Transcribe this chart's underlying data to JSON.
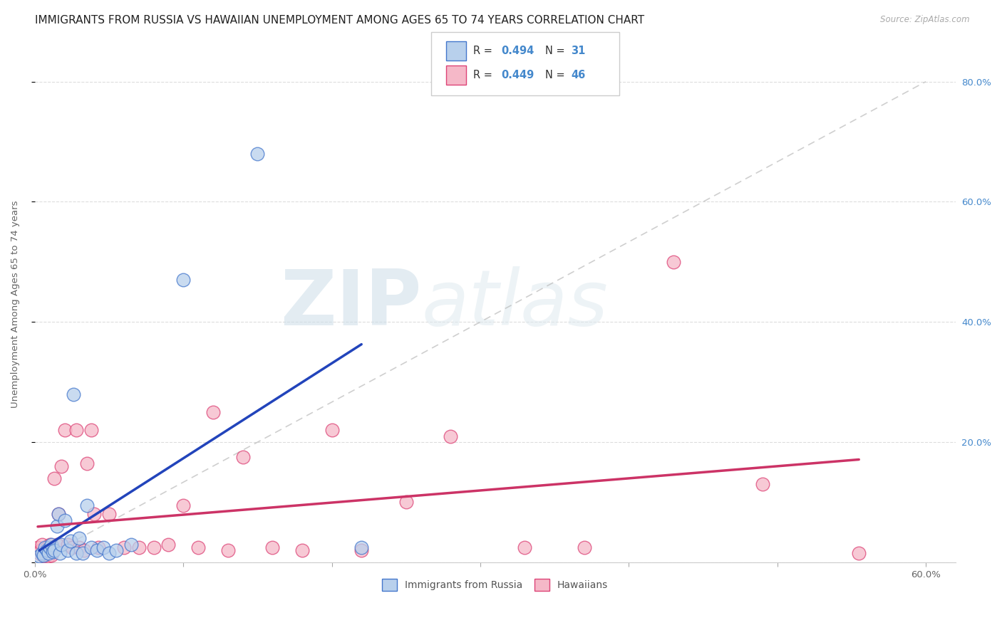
{
  "title": "IMMIGRANTS FROM RUSSIA VS HAWAIIAN UNEMPLOYMENT AMONG AGES 65 TO 74 YEARS CORRELATION CHART",
  "source": "Source: ZipAtlas.com",
  "ylabel": "Unemployment Among Ages 65 to 74 years",
  "xlim": [
    0.0,
    0.62
  ],
  "ylim": [
    0.0,
    0.86
  ],
  "xtick_positions": [
    0.0,
    0.1,
    0.2,
    0.3,
    0.4,
    0.5,
    0.6
  ],
  "ytick_positions": [
    0.0,
    0.2,
    0.4,
    0.6,
    0.8
  ],
  "watermark_zip": "ZIP",
  "watermark_atlas": "atlas",
  "series1_fill": "#b8d0ec",
  "series1_edge": "#4477cc",
  "series2_fill": "#f5b8c8",
  "series2_edge": "#dd4477",
  "line1_color": "#2244bb",
  "line2_color": "#cc3366",
  "ref_line_color": "#bbbbbb",
  "grid_color": "#dddddd",
  "blue_x": [
    0.003,
    0.005,
    0.006,
    0.007,
    0.008,
    0.009,
    0.01,
    0.011,
    0.012,
    0.013,
    0.015,
    0.016,
    0.017,
    0.018,
    0.02,
    0.022,
    0.024,
    0.026,
    0.028,
    0.03,
    0.032,
    0.035,
    0.038,
    0.042,
    0.046,
    0.05,
    0.055,
    0.065,
    0.1,
    0.15,
    0.22
  ],
  "blue_y": [
    0.01,
    0.015,
    0.012,
    0.025,
    0.02,
    0.015,
    0.025,
    0.03,
    0.018,
    0.02,
    0.06,
    0.08,
    0.015,
    0.03,
    0.07,
    0.02,
    0.035,
    0.28,
    0.015,
    0.04,
    0.015,
    0.095,
    0.025,
    0.02,
    0.025,
    0.015,
    0.02,
    0.03,
    0.47,
    0.68,
    0.025
  ],
  "pink_x": [
    0.002,
    0.003,
    0.004,
    0.005,
    0.006,
    0.007,
    0.008,
    0.009,
    0.01,
    0.011,
    0.012,
    0.013,
    0.015,
    0.016,
    0.018,
    0.02,
    0.022,
    0.025,
    0.028,
    0.03,
    0.033,
    0.035,
    0.038,
    0.04,
    0.043,
    0.05,
    0.06,
    0.07,
    0.08,
    0.09,
    0.1,
    0.11,
    0.12,
    0.13,
    0.14,
    0.16,
    0.18,
    0.2,
    0.22,
    0.25,
    0.28,
    0.33,
    0.37,
    0.43,
    0.49,
    0.555
  ],
  "pink_y": [
    0.025,
    0.015,
    0.02,
    0.03,
    0.01,
    0.015,
    0.025,
    0.01,
    0.03,
    0.012,
    0.025,
    0.14,
    0.03,
    0.08,
    0.16,
    0.22,
    0.03,
    0.025,
    0.22,
    0.025,
    0.02,
    0.165,
    0.22,
    0.08,
    0.025,
    0.08,
    0.025,
    0.025,
    0.025,
    0.03,
    0.095,
    0.025,
    0.25,
    0.02,
    0.175,
    0.025,
    0.02,
    0.22,
    0.02,
    0.1,
    0.21,
    0.025,
    0.025,
    0.5,
    0.13,
    0.015
  ],
  "legend1_r": "0.494",
  "legend1_n": "31",
  "legend2_r": "0.449",
  "legend2_n": "46",
  "title_fontsize": 11,
  "label_fontsize": 9.5,
  "tick_fontsize": 9.5,
  "legend_fontsize": 10
}
